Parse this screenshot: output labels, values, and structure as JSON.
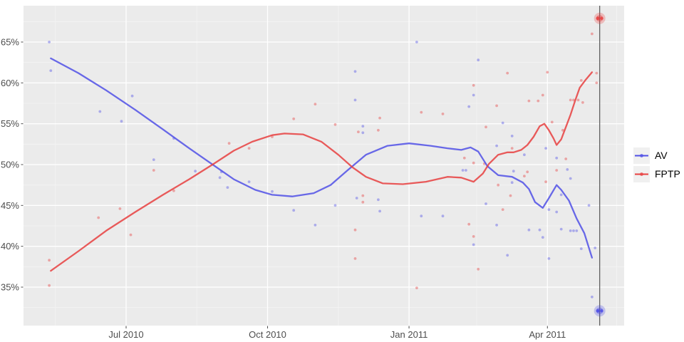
{
  "chart_data": {
    "type": "scatter",
    "title": "",
    "xlabel": "",
    "ylabel": "",
    "x_ticks": [
      {
        "label": "Jul 2010",
        "date": "2010-07-01"
      },
      {
        "label": "Oct 2010",
        "date": "2010-10-01"
      },
      {
        "label": "Jan 2011",
        "date": "2011-01-01"
      },
      {
        "label": "Apr 2011",
        "date": "2011-04-01"
      }
    ],
    "y_ticks": [
      {
        "label": "35%",
        "value": 35
      },
      {
        "label": "40%",
        "value": 40
      },
      {
        "label": "45%",
        "value": 45
      },
      {
        "label": "50%",
        "value": 50
      },
      {
        "label": "55%",
        "value": 55
      },
      {
        "label": "60%",
        "value": 60
      },
      {
        "label": "65%",
        "value": 65
      }
    ],
    "ylim": [
      30.3,
      69.4
    ],
    "xlim": [
      "2010-04-25",
      "2011-05-21"
    ],
    "grid": "on",
    "legend": {
      "position": "right",
      "entries": [
        {
          "label": "AV",
          "color": "#5050e6"
        },
        {
          "label": "FPTP",
          "color": "#e84040"
        }
      ]
    },
    "vline_date": "2011-05-05",
    "layout": {
      "panel_bg": "#ebebeb",
      "grid_major_color": "#ffffff",
      "grid_minor_color": "#f4f4f4",
      "tick_text_color": "#4d4d4d",
      "vline_color": "#606060",
      "minor_y": [
        32.5,
        37.5,
        42.5,
        47.5,
        52.5,
        57.5,
        62.5,
        67.5
      ],
      "minor_x": [
        "2010-05-16",
        "2010-08-16",
        "2010-11-16",
        "2011-02-14",
        "2011-05-16"
      ]
    },
    "series": [
      {
        "name": "AV",
        "color": "#5050e6",
        "result": {
          "date": "2011-05-05",
          "value": 32.1
        },
        "points": [
          [
            "2010-05-12",
            65.0
          ],
          [
            "2010-05-13",
            61.5
          ],
          [
            "2010-06-14",
            56.5
          ],
          [
            "2010-06-28",
            55.3
          ],
          [
            "2010-07-05",
            58.4
          ],
          [
            "2010-07-19",
            50.6
          ],
          [
            "2010-08-01",
            53.2
          ],
          [
            "2010-08-15",
            49.2
          ],
          [
            "2010-08-31",
            48.4
          ],
          [
            "2010-09-01",
            49.1
          ],
          [
            "2010-09-05",
            47.2
          ],
          [
            "2010-09-19",
            47.9
          ],
          [
            "2010-10-04",
            46.7
          ],
          [
            "2010-10-18",
            44.4
          ],
          [
            "2010-11-01",
            42.6
          ],
          [
            "2010-11-14",
            45.0
          ],
          [
            "2010-11-27",
            61.4
          ],
          [
            "2010-11-27",
            57.9
          ],
          [
            "2010-11-28",
            45.9
          ],
          [
            "2010-12-02",
            54.7
          ],
          [
            "2010-12-02",
            53.9
          ],
          [
            "2010-12-12",
            45.7
          ],
          [
            "2010-12-13",
            44.3
          ],
          [
            "2011-01-06",
            65.0
          ],
          [
            "2011-01-09",
            43.7
          ],
          [
            "2011-01-23",
            43.7
          ],
          [
            "2011-02-05",
            49.3
          ],
          [
            "2011-02-07",
            49.3
          ],
          [
            "2011-02-09",
            57.1
          ],
          [
            "2011-02-12",
            58.5
          ],
          [
            "2011-02-12",
            40.2
          ],
          [
            "2011-02-15",
            62.8
          ],
          [
            "2011-02-20",
            45.2
          ],
          [
            "2011-02-27",
            42.6
          ],
          [
            "2011-02-27",
            52.3
          ],
          [
            "2011-03-03",
            55.1
          ],
          [
            "2011-03-06",
            38.9
          ],
          [
            "2011-03-09",
            53.5
          ],
          [
            "2011-03-09",
            47.8
          ],
          [
            "2011-03-10",
            49.2
          ],
          [
            "2011-03-17",
            51.2
          ],
          [
            "2011-03-20",
            42.0
          ],
          [
            "2011-03-27",
            42.0
          ],
          [
            "2011-03-29",
            41.1
          ],
          [
            "2011-03-31",
            52.0
          ],
          [
            "2011-04-02",
            38.5
          ],
          [
            "2011-04-02",
            44.5
          ],
          [
            "2011-04-07",
            50.8
          ],
          [
            "2011-04-07",
            44.2
          ],
          [
            "2011-04-10",
            46.3
          ],
          [
            "2011-04-10",
            42.1
          ],
          [
            "2011-04-14",
            49.4
          ],
          [
            "2011-04-16",
            41.9
          ],
          [
            "2011-04-16",
            48.3
          ],
          [
            "2011-04-18",
            41.9
          ],
          [
            "2011-04-20",
            41.9
          ],
          [
            "2011-04-23",
            39.7
          ],
          [
            "2011-04-28",
            45.0
          ],
          [
            "2011-04-30",
            33.8
          ],
          [
            "2011-05-02",
            39.8
          ]
        ],
        "trend": [
          [
            "2010-05-13",
            63.0
          ],
          [
            "2010-05-31",
            61.2
          ],
          [
            "2010-06-18",
            59.1
          ],
          [
            "2010-07-07",
            56.7
          ],
          [
            "2010-07-25",
            54.3
          ],
          [
            "2010-08-11",
            52.0
          ],
          [
            "2010-08-27",
            49.9
          ],
          [
            "2010-09-09",
            48.2
          ],
          [
            "2010-09-23",
            46.9
          ],
          [
            "2010-10-04",
            46.3
          ],
          [
            "2010-10-17",
            46.1
          ],
          [
            "2010-10-31",
            46.5
          ],
          [
            "2010-11-11",
            47.5
          ],
          [
            "2010-11-22",
            49.3
          ],
          [
            "2010-12-04",
            51.2
          ],
          [
            "2010-12-18",
            52.3
          ],
          [
            "2011-01-01",
            52.6
          ],
          [
            "2011-01-15",
            52.3
          ],
          [
            "2011-01-26",
            52.0
          ],
          [
            "2011-02-04",
            51.8
          ],
          [
            "2011-02-10",
            52.1
          ],
          [
            "2011-02-15",
            51.6
          ],
          [
            "2011-02-21",
            49.8
          ],
          [
            "2011-02-28",
            48.7
          ],
          [
            "2011-03-09",
            48.5
          ],
          [
            "2011-03-16",
            47.8
          ],
          [
            "2011-03-20",
            47.0
          ],
          [
            "2011-03-24",
            45.4
          ],
          [
            "2011-03-29",
            44.7
          ],
          [
            "2011-04-02",
            45.9
          ],
          [
            "2011-04-07",
            47.5
          ],
          [
            "2011-04-10",
            46.9
          ],
          [
            "2011-04-15",
            45.6
          ],
          [
            "2011-04-20",
            43.4
          ],
          [
            "2011-04-25",
            41.6
          ],
          [
            "2011-04-30",
            38.6
          ]
        ]
      },
      {
        "name": "FPTP",
        "color": "#e84040",
        "result": {
          "date": "2011-05-05",
          "value": 67.9
        },
        "points": [
          [
            "2010-05-12",
            38.3
          ],
          [
            "2010-05-12",
            35.2
          ],
          [
            "2010-06-13",
            43.5
          ],
          [
            "2010-06-27",
            44.6
          ],
          [
            "2010-07-04",
            41.4
          ],
          [
            "2010-07-19",
            49.3
          ],
          [
            "2010-08-01",
            46.8
          ],
          [
            "2010-09-06",
            52.6
          ],
          [
            "2010-09-19",
            52.0
          ],
          [
            "2010-10-04",
            53.4
          ],
          [
            "2010-10-18",
            55.6
          ],
          [
            "2010-11-01",
            57.4
          ],
          [
            "2010-11-14",
            54.9
          ],
          [
            "2010-11-27",
            42.0
          ],
          [
            "2010-11-27",
            38.5
          ],
          [
            "2010-11-29",
            54.0
          ],
          [
            "2010-12-02",
            45.4
          ],
          [
            "2010-12-02",
            46.2
          ],
          [
            "2010-12-12",
            54.2
          ],
          [
            "2010-12-13",
            55.7
          ],
          [
            "2011-01-06",
            34.9
          ],
          [
            "2011-01-09",
            56.4
          ],
          [
            "2011-01-23",
            56.2
          ],
          [
            "2011-02-06",
            50.8
          ],
          [
            "2011-02-09",
            42.7
          ],
          [
            "2011-02-12",
            41.2
          ],
          [
            "2011-02-12",
            59.7
          ],
          [
            "2011-02-12",
            50.2
          ],
          [
            "2011-02-15",
            37.2
          ],
          [
            "2011-02-19",
            50.1
          ],
          [
            "2011-02-20",
            54.6
          ],
          [
            "2011-02-27",
            57.2
          ],
          [
            "2011-02-28",
            47.5
          ],
          [
            "2011-03-03",
            44.5
          ],
          [
            "2011-03-06",
            61.2
          ],
          [
            "2011-03-08",
            46.2
          ],
          [
            "2011-03-09",
            52.0
          ],
          [
            "2011-03-17",
            48.6
          ],
          [
            "2011-03-19",
            49.1
          ],
          [
            "2011-03-20",
            57.8
          ],
          [
            "2011-03-26",
            57.8
          ],
          [
            "2011-03-29",
            58.5
          ],
          [
            "2011-03-31",
            47.9
          ],
          [
            "2011-04-01",
            61.3
          ],
          [
            "2011-04-04",
            55.2
          ],
          [
            "2011-04-07",
            49.3
          ],
          [
            "2011-04-11",
            54.2
          ],
          [
            "2011-04-13",
            50.7
          ],
          [
            "2011-04-16",
            57.9
          ],
          [
            "2011-04-18",
            57.9
          ],
          [
            "2011-04-21",
            57.9
          ],
          [
            "2011-04-23",
            60.3
          ],
          [
            "2011-04-24",
            57.6
          ],
          [
            "2011-04-30",
            66.0
          ],
          [
            "2011-05-03",
            61.2
          ],
          [
            "2011-05-03",
            60.0
          ]
        ],
        "trend": [
          [
            "2010-05-13",
            37.0
          ],
          [
            "2010-05-31",
            39.4
          ],
          [
            "2010-06-18",
            41.9
          ],
          [
            "2010-07-07",
            44.2
          ],
          [
            "2010-07-25",
            46.3
          ],
          [
            "2010-08-11",
            48.2
          ],
          [
            "2010-08-27",
            50.1
          ],
          [
            "2010-09-09",
            51.7
          ],
          [
            "2010-09-21",
            52.8
          ],
          [
            "2010-10-04",
            53.6
          ],
          [
            "2010-10-12",
            53.8
          ],
          [
            "2010-10-24",
            53.7
          ],
          [
            "2010-11-05",
            52.8
          ],
          [
            "2010-11-16",
            51.2
          ],
          [
            "2010-11-25",
            49.7
          ],
          [
            "2010-12-04",
            48.5
          ],
          [
            "2010-12-15",
            47.7
          ],
          [
            "2010-12-28",
            47.6
          ],
          [
            "2011-01-12",
            47.9
          ],
          [
            "2011-01-26",
            48.5
          ],
          [
            "2011-02-04",
            48.4
          ],
          [
            "2011-02-12",
            47.9
          ],
          [
            "2011-02-18",
            48.9
          ],
          [
            "2011-02-22",
            50.1
          ],
          [
            "2011-02-28",
            51.2
          ],
          [
            "2011-03-06",
            51.5
          ],
          [
            "2011-03-10",
            51.5
          ],
          [
            "2011-03-15",
            51.8
          ],
          [
            "2011-03-19",
            52.4
          ],
          [
            "2011-03-23",
            53.4
          ],
          [
            "2011-03-27",
            54.7
          ],
          [
            "2011-03-30",
            55.0
          ],
          [
            "2011-04-02",
            54.2
          ],
          [
            "2011-04-05",
            53.2
          ],
          [
            "2011-04-07",
            52.4
          ],
          [
            "2011-04-10",
            53.1
          ],
          [
            "2011-04-13",
            54.6
          ],
          [
            "2011-04-16",
            56.1
          ],
          [
            "2011-04-19",
            57.8
          ],
          [
            "2011-04-22",
            59.4
          ],
          [
            "2011-04-26",
            60.4
          ],
          [
            "2011-04-30",
            61.3
          ]
        ]
      }
    ]
  }
}
